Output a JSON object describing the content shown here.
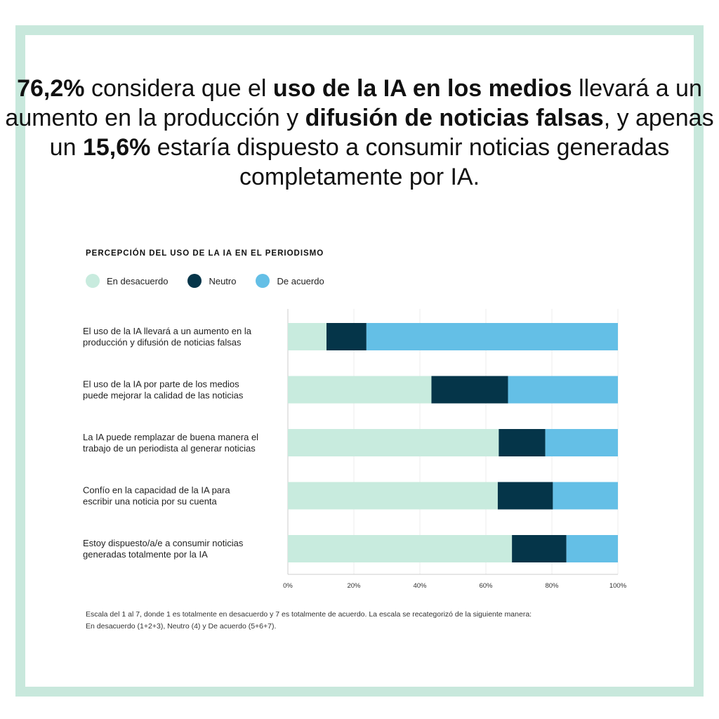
{
  "headline": {
    "pct1": "76,2%",
    "t1": " considera que el ",
    "b1": "uso de la IA en los medios",
    "t2": " llevará a un aumento en la producción y ",
    "b2": "difusión de noticias falsas",
    "t3": ", y apenas un ",
    "pct2": "15,6%",
    "t4": " estaría dispuesto a consumir noticias generadas completamente por IA."
  },
  "legend": [
    {
      "label": "En desacuerdo",
      "color": "#c8ebde"
    },
    {
      "label": "Neutro",
      "color": "#053549"
    },
    {
      "label": "De acuerdo",
      "color": "#64bfe6"
    }
  ],
  "footnote": {
    "line1": "Escala del 1 al 7, donde 1 es totalmente en desacuerdo y 7 es totalmente de acuerdo. La escala se recategorizó de la siguiente manera:",
    "line2": "En desacuerdo (1+2+3), Neutro (4) y De acuerdo (5+6+7)."
  },
  "chart_data": {
    "type": "bar",
    "orientation": "horizontal",
    "stacked": true,
    "title": "PERCEPCIÓN DEL USO DE LA IA EN EL PERIODISMO",
    "categories": [
      [
        "El uso de la IA llevará a un aumento en la",
        "producción y difusión de noticias falsas"
      ],
      [
        "El uso de la IA por parte de los medios",
        "puede mejorar la calidad de las noticias"
      ],
      [
        "La IA puede remplazar de buena manera el",
        "trabajo de un periodista al generar noticias"
      ],
      [
        "Confío en la capacidad de la IA para",
        "escribir una noticia por su cuenta"
      ],
      [
        "Estoy dispuesto/a/e a consumir noticias",
        "generadas totalmente por la IA"
      ]
    ],
    "series": [
      {
        "name": "En desacuerdo",
        "color": "#c8ebde",
        "values": [
          11.7,
          43.5,
          63.9,
          63.6,
          67.9
        ]
      },
      {
        "name": "Neutro",
        "color": "#053549",
        "values": [
          12.1,
          23.2,
          14.1,
          16.7,
          16.5
        ]
      },
      {
        "name": "De acuerdo",
        "color": "#64bfe6",
        "values": [
          76.2,
          33.3,
          22.0,
          19.7,
          15.6
        ]
      }
    ],
    "xlim": [
      0,
      100
    ],
    "xticks": [
      "0%",
      "20%",
      "40%",
      "60%",
      "80%",
      "100%"
    ],
    "legend_position": "top-left"
  }
}
